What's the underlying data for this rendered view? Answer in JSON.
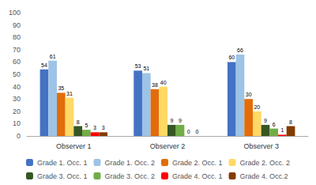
{
  "chart_data": {
    "type": "bar",
    "categories": [
      "Observer 1",
      "Observer 2",
      "Observer 3"
    ],
    "series": [
      {
        "name": "Grade 1. Occ. 1",
        "color": "#4472C4",
        "values": [
          54,
          53,
          60
        ]
      },
      {
        "name": "Grade 1. Occ. 2",
        "color": "#9DC3E6",
        "values": [
          61,
          51,
          66
        ]
      },
      {
        "name": "Grade 2. Occ. 1",
        "color": "#E36C09",
        "values": [
          35,
          38,
          30
        ]
      },
      {
        "name": "Grade 2. Occ. 2",
        "color": "#FFD966",
        "values": [
          31,
          40,
          20
        ]
      },
      {
        "name": "Grade 3. Occ. 1",
        "color": "#375623",
        "values": [
          8,
          9,
          9
        ]
      },
      {
        "name": "Grade 3. Occ. 2",
        "color": "#70AD47",
        "values": [
          5,
          9,
          6
        ]
      },
      {
        "name": "Grade 4. Occ. 1",
        "color": "#FF0000",
        "values": [
          3,
          0,
          1
        ]
      },
      {
        "name": "Grade 4. Occ.2",
        "color": "#833C00",
        "values": [
          3,
          0,
          8
        ]
      }
    ],
    "ylim": [
      0,
      100
    ],
    "yticks": [
      0,
      10,
      20,
      30,
      40,
      50,
      60,
      70,
      80,
      90,
      100
    ],
    "grid": false,
    "legend": "bottom",
    "data_labels": true
  }
}
